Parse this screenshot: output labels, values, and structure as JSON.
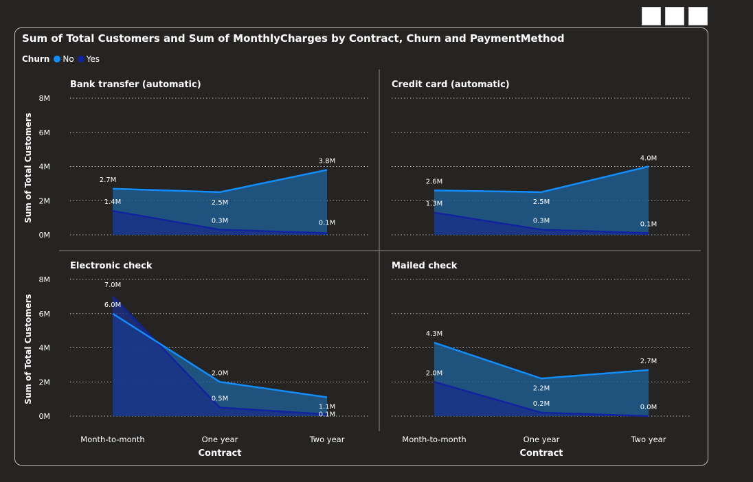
{
  "visual": {
    "title": "Sum of Total Customers and Sum of MonthlyCharges by Contract, Churn and PaymentMethod"
  },
  "legend": {
    "title": "Churn",
    "items": [
      {
        "label": "No",
        "color": "#118DFF"
      },
      {
        "label": "Yes",
        "color": "#12239E"
      }
    ]
  },
  "chart_data": {
    "type": "area",
    "xlabel": "Contract",
    "ylabel": "Sum of Total Customers",
    "categories": [
      "Month-to-month",
      "One year",
      "Two year"
    ],
    "y_ticks": [
      "0M",
      "2M",
      "4M",
      "6M",
      "8M"
    ],
    "ylim": [
      0,
      8
    ],
    "grid": true,
    "panels": [
      {
        "title": "Bank transfer (automatic)",
        "series": [
          {
            "name": "No",
            "values": [
              2.7,
              2.5,
              3.8
            ],
            "labels": [
              "2.7M",
              "2.5M",
              "3.8M"
            ]
          },
          {
            "name": "Yes",
            "values": [
              1.4,
              0.3,
              0.1
            ],
            "labels": [
              "1.4M",
              "0.3M",
              "0.1M"
            ]
          }
        ]
      },
      {
        "title": "Credit card (automatic)",
        "series": [
          {
            "name": "No",
            "values": [
              2.6,
              2.5,
              4.0
            ],
            "labels": [
              "2.6M",
              "2.5M",
              "4.0M"
            ]
          },
          {
            "name": "Yes",
            "values": [
              1.3,
              0.3,
              0.1
            ],
            "labels": [
              "1.3M",
              "0.3M",
              "0.1M"
            ]
          }
        ]
      },
      {
        "title": "Electronic check",
        "series": [
          {
            "name": "No",
            "values": [
              6.0,
              2.0,
              1.1
            ],
            "labels": [
              "6.0M",
              "2.0M",
              "1.1M"
            ]
          },
          {
            "name": "Yes",
            "values": [
              7.0,
              0.5,
              0.1
            ],
            "labels": [
              "7.0M",
              "0.5M",
              "0.1M"
            ]
          }
        ]
      },
      {
        "title": "Mailed check",
        "series": [
          {
            "name": "No",
            "values": [
              4.3,
              2.2,
              2.7
            ],
            "labels": [
              "4.3M",
              "2.2M",
              "2.7M"
            ]
          },
          {
            "name": "Yes",
            "values": [
              2.0,
              0.2,
              0.0
            ],
            "labels": [
              "2.0M",
              "0.2M",
              "0.0M"
            ]
          }
        ]
      }
    ]
  }
}
